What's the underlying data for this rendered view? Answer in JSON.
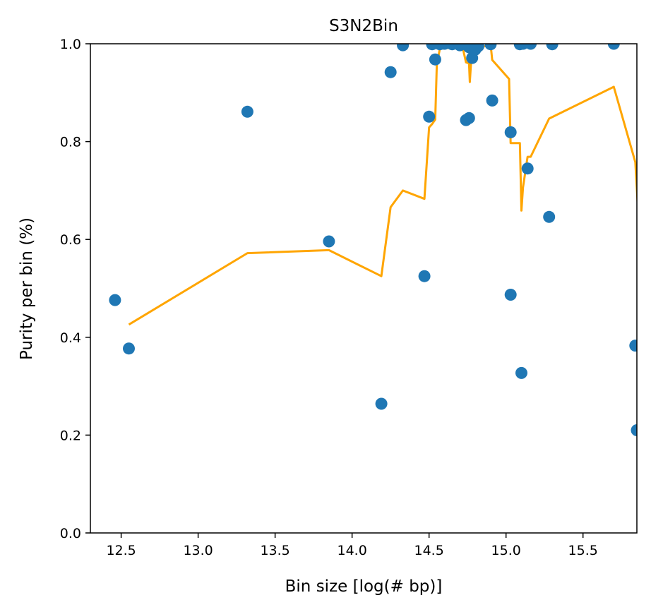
{
  "chart_data": {
    "type": "scatter",
    "title": "S3N2Bin",
    "xlabel": "Bin size [log(# bp)]",
    "ylabel": "Purity per bin (%)",
    "xlim": [
      12.3,
      15.85
    ],
    "ylim": [
      0.0,
      1.0
    ],
    "xticks": [
      "12.5",
      "13.0",
      "13.5",
      "14.0",
      "14.5",
      "15.0",
      "15.5"
    ],
    "yticks": [
      "0.0",
      "0.2",
      "0.4",
      "0.6",
      "0.8",
      "1.0"
    ],
    "grid": false,
    "colors": {
      "points": "#1f77b4",
      "line": "#ffa500"
    },
    "points": [
      {
        "x": 12.46,
        "y": 0.476
      },
      {
        "x": 12.55,
        "y": 0.377
      },
      {
        "x": 13.32,
        "y": 0.861
      },
      {
        "x": 13.85,
        "y": 0.596
      },
      {
        "x": 14.19,
        "y": 0.264
      },
      {
        "x": 14.25,
        "y": 0.942
      },
      {
        "x": 14.33,
        "y": 0.997
      },
      {
        "x": 14.47,
        "y": 0.525
      },
      {
        "x": 14.5,
        "y": 0.851
      },
      {
        "x": 14.52,
        "y": 0.999
      },
      {
        "x": 14.54,
        "y": 0.968
      },
      {
        "x": 14.57,
        "y": 0.999
      },
      {
        "x": 14.6,
        "y": 1.0
      },
      {
        "x": 14.65,
        "y": 0.999
      },
      {
        "x": 14.7,
        "y": 0.997
      },
      {
        "x": 14.72,
        "y": 1.0
      },
      {
        "x": 14.74,
        "y": 0.844
      },
      {
        "x": 14.76,
        "y": 0.848
      },
      {
        "x": 14.76,
        "y": 0.993
      },
      {
        "x": 14.78,
        "y": 0.971
      },
      {
        "x": 14.8,
        "y": 0.988
      },
      {
        "x": 14.82,
        "y": 0.995
      },
      {
        "x": 14.9,
        "y": 0.999
      },
      {
        "x": 14.91,
        "y": 0.884
      },
      {
        "x": 15.03,
        "y": 0.819
      },
      {
        "x": 15.03,
        "y": 0.487
      },
      {
        "x": 15.09,
        "y": 0.999
      },
      {
        "x": 15.1,
        "y": 0.327
      },
      {
        "x": 15.11,
        "y": 1.0
      },
      {
        "x": 15.14,
        "y": 0.745
      },
      {
        "x": 15.16,
        "y": 1.0
      },
      {
        "x": 15.28,
        "y": 0.646
      },
      {
        "x": 15.3,
        "y": 0.999
      },
      {
        "x": 15.7,
        "y": 1.0
      },
      {
        "x": 15.84,
        "y": 0.383
      },
      {
        "x": 15.85,
        "y": 0.21
      }
    ],
    "series": [
      {
        "type": "line",
        "points": [
          {
            "x": 12.55,
            "y": 0.426
          },
          {
            "x": 13.32,
            "y": 0.572
          },
          {
            "x": 13.85,
            "y": 0.578
          },
          {
            "x": 14.19,
            "y": 0.525
          },
          {
            "x": 14.25,
            "y": 0.666
          },
          {
            "x": 14.33,
            "y": 0.7
          },
          {
            "x": 14.47,
            "y": 0.683
          },
          {
            "x": 14.5,
            "y": 0.829
          },
          {
            "x": 14.52,
            "y": 0.836
          },
          {
            "x": 14.54,
            "y": 0.845
          },
          {
            "x": 14.55,
            "y": 0.955
          },
          {
            "x": 14.57,
            "y": 0.99
          },
          {
            "x": 14.65,
            "y": 0.992
          },
          {
            "x": 14.7,
            "y": 0.998
          },
          {
            "x": 14.72,
            "y": 0.99
          },
          {
            "x": 14.74,
            "y": 0.962
          },
          {
            "x": 14.76,
            "y": 0.96
          },
          {
            "x": 14.765,
            "y": 0.922
          },
          {
            "x": 14.78,
            "y": 0.998
          },
          {
            "x": 14.8,
            "y": 0.99
          },
          {
            "x": 14.9,
            "y": 0.998
          },
          {
            "x": 14.91,
            "y": 0.967
          },
          {
            "x": 15.02,
            "y": 0.928
          },
          {
            "x": 15.03,
            "y": 0.797
          },
          {
            "x": 15.09,
            "y": 0.797
          },
          {
            "x": 15.1,
            "y": 0.659
          },
          {
            "x": 15.11,
            "y": 0.706
          },
          {
            "x": 15.14,
            "y": 0.769
          },
          {
            "x": 15.16,
            "y": 0.769
          },
          {
            "x": 15.28,
            "y": 0.847
          },
          {
            "x": 15.7,
            "y": 0.912
          },
          {
            "x": 15.84,
            "y": 0.758
          },
          {
            "x": 15.86,
            "y": 0.646
          }
        ]
      }
    ]
  }
}
